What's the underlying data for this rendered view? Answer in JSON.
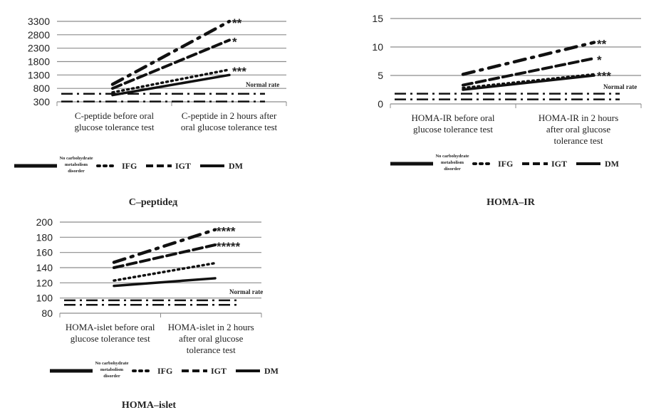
{
  "legend": {
    "no_disorder": [
      "No carbohydrate",
      "metabolism",
      "disorder"
    ],
    "ifg": "IFG",
    "igt": "IGT",
    "dm": "DM"
  },
  "normal_rate_label": "Normal rate",
  "chart_data": [
    {
      "id": "cpeptide",
      "type": "line",
      "caption": "C–peptideд",
      "categories": [
        [
          "C-peptide before oral",
          "glucose tolerance test"
        ],
        [
          "C-peptide in 2 hours after",
          "oral glucose tolerance test"
        ]
      ],
      "yticks": [
        300,
        800,
        1300,
        1800,
        2300,
        2800,
        3300
      ],
      "ylim": [
        300,
        3300
      ],
      "series": [
        {
          "key": "no_disorder",
          "values": [
            950,
            3300
          ],
          "label": "**"
        },
        {
          "key": "ifg",
          "values": [
            650,
            1500
          ],
          "label": "***"
        },
        {
          "key": "igt",
          "values": [
            800,
            2600
          ],
          "label": "*"
        },
        {
          "key": "dm",
          "values": [
            550,
            1300
          ],
          "label": ""
        }
      ],
      "normal_lines": [
        600,
        310
      ],
      "normal_label": "Normal rate"
    },
    {
      "id": "homair",
      "type": "line",
      "caption": "HOMA–IR",
      "categories": [
        [
          "HOMA-IR before oral",
          "glucose tolerance test"
        ],
        [
          "HOMA-IR in 2 hours",
          "after oral glucose",
          "tolerance test"
        ]
      ],
      "yticks": [
        0,
        5,
        10,
        15
      ],
      "ylim": [
        0,
        15
      ],
      "series": [
        {
          "key": "no_disorder",
          "values": [
            5.2,
            10.8
          ],
          "label": "**"
        },
        {
          "key": "ifg",
          "values": [
            2.8,
            5.2
          ],
          "label": "***"
        },
        {
          "key": "igt",
          "values": [
            3.3,
            8.0
          ],
          "label": "*"
        },
        {
          "key": "dm",
          "values": [
            2.5,
            5.0
          ],
          "label": ""
        }
      ],
      "normal_lines": [
        1.8,
        0.8
      ],
      "normal_label": "Normal rate"
    },
    {
      "id": "homaislet",
      "type": "line",
      "caption": "HOMA–islet",
      "categories": [
        [
          "HOMA-islet before oral",
          "glucose tolerance test"
        ],
        [
          "HOMA-islet in 2 hours",
          "after oral glucose",
          "tolerance test"
        ]
      ],
      "yticks": [
        80,
        100,
        120,
        140,
        160,
        180,
        200
      ],
      "ylim": [
        80,
        200
      ],
      "series": [
        {
          "key": "no_disorder",
          "values": [
            147,
            190
          ],
          "label": "****"
        },
        {
          "key": "ifg",
          "values": [
            123,
            146
          ],
          "label": ""
        },
        {
          "key": "igt",
          "values": [
            140,
            170
          ],
          "label": "*****"
        },
        {
          "key": "dm",
          "values": [
            116,
            126
          ],
          "label": ""
        }
      ],
      "normal_lines": [
        97,
        91
      ],
      "normal_label": "Normal rate"
    }
  ]
}
